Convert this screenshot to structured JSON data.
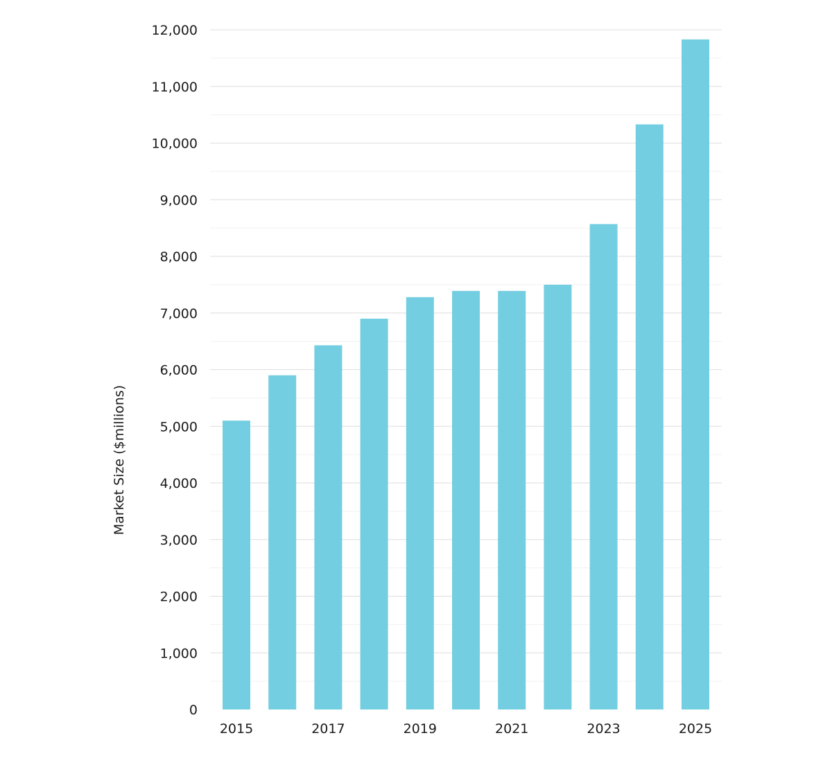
{
  "chart_data": {
    "type": "bar",
    "categories": [
      "2015",
      "2016",
      "2017",
      "2018",
      "2019",
      "2020",
      "2021",
      "2022",
      "2023",
      "2024",
      "2025"
    ],
    "x_tick_labels": [
      "2015",
      "2017",
      "2019",
      "2021",
      "2023",
      "2025"
    ],
    "values": [
      5100,
      5900,
      6430,
      6900,
      7280,
      7390,
      7390,
      7500,
      8570,
      10330,
      11830
    ],
    "ylabel": "Market Size ($millions)",
    "xlabel": "",
    "title": "",
    "ylim": [
      0,
      12000
    ],
    "y_ticks": [
      0,
      1000,
      2000,
      3000,
      4000,
      5000,
      6000,
      7000,
      8000,
      9000,
      10000,
      11000,
      12000
    ],
    "y_tick_labels": [
      "0",
      "1,000",
      "2,000",
      "3,000",
      "4,000",
      "5,000",
      "6,000",
      "7,000",
      "8,000",
      "9,000",
      "10,000",
      "11,000",
      "12,000"
    ],
    "grid": true,
    "legend": "none",
    "bar_color": "#74cee1",
    "grid_color": "#dedede"
  }
}
